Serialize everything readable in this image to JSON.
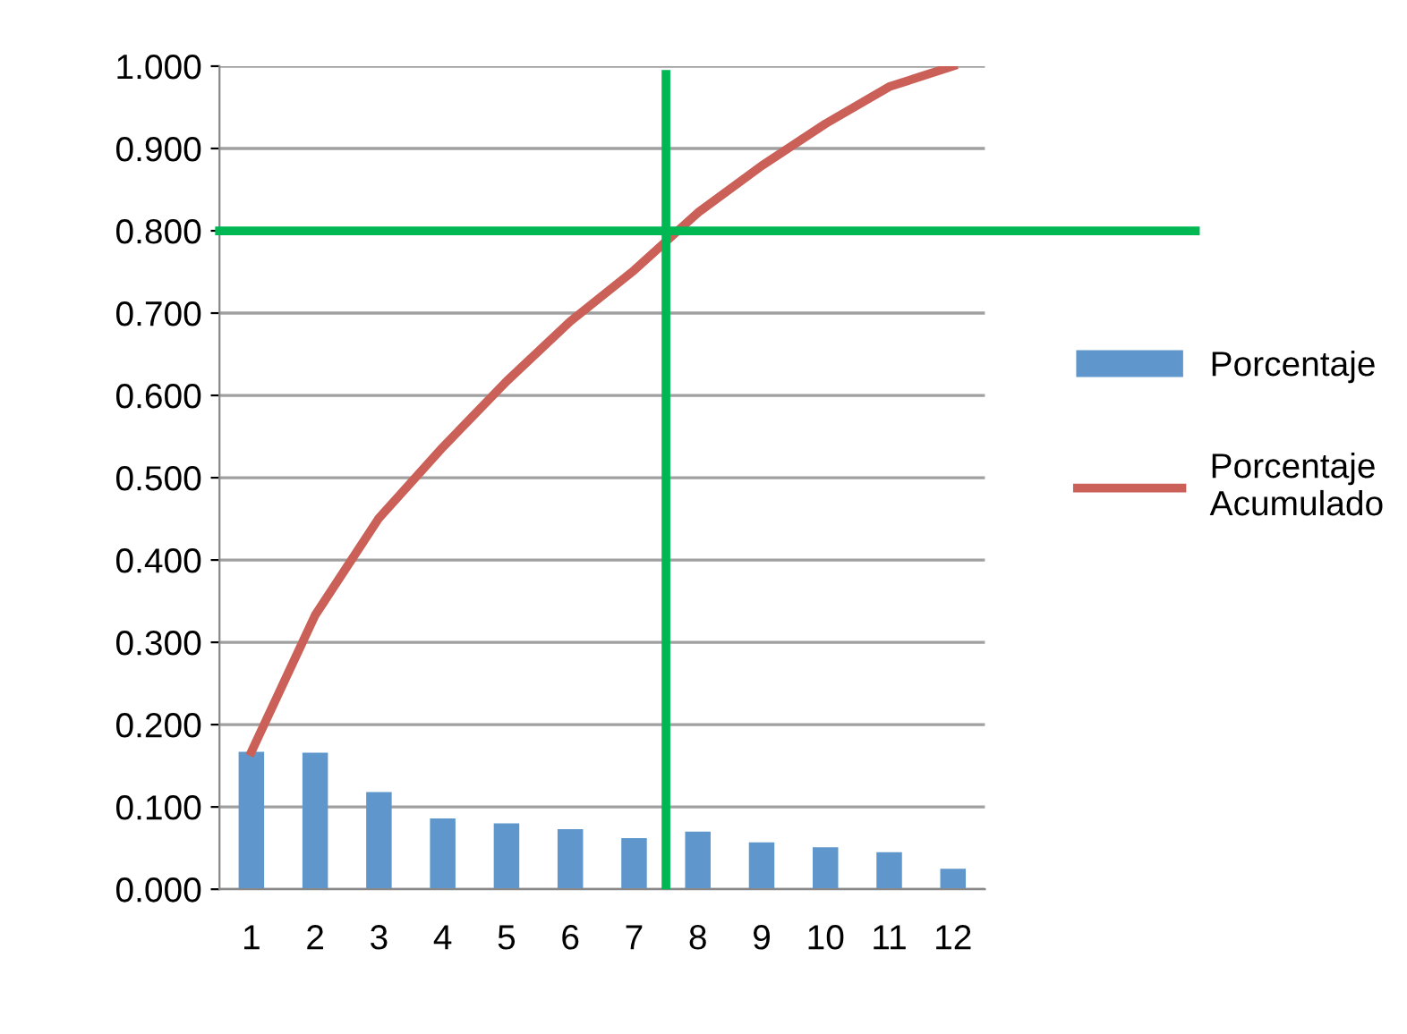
{
  "chart_data": {
    "type": "bar",
    "x": [
      1,
      2,
      3,
      4,
      5,
      6,
      7,
      8,
      9,
      10,
      11,
      12
    ],
    "xlim": [
      0.5,
      12.5
    ],
    "xticks": [
      1,
      2,
      3,
      4,
      5,
      6,
      7,
      8,
      9,
      10,
      11,
      12
    ],
    "ylim": [
      0,
      1
    ],
    "yticks": [
      {
        "value": 0,
        "label": "0.000"
      },
      {
        "value": 0.1,
        "label": "0.100"
      },
      {
        "value": 0.2,
        "label": "0.200"
      },
      {
        "value": 0.3,
        "label": "0.300"
      },
      {
        "value": 0.4,
        "label": "0.400"
      },
      {
        "value": 0.5,
        "label": "0.500"
      },
      {
        "value": 0.6,
        "label": "0.600"
      },
      {
        "value": 0.7,
        "label": "0.700"
      },
      {
        "value": 0.8,
        "label": "0.800"
      },
      {
        "value": 0.9,
        "label": "0.900"
      },
      {
        "value": 1,
        "label": "1.000"
      }
    ],
    "grid": "y",
    "legend": "right",
    "series": [
      {
        "name": "Porcentaje",
        "color": "#5f97cc",
        "values": [
          0.167,
          0.166,
          0.118,
          0.086,
          0.08,
          0.073,
          0.062,
          0.07,
          0.057,
          0.051,
          0.045,
          0.025
        ]
      },
      {
        "name": "Porcentaje\nAcumulado",
        "type": "line",
        "color": "#cb6058",
        "values": [
          0.167,
          0.333,
          0.451,
          0.537,
          0.617,
          0.69,
          0.752,
          0.822,
          0.879,
          0.93,
          0.975,
          1.0
        ]
      }
    ],
    "ref_lines": [
      {
        "axis": "y",
        "value": 0.8,
        "color": "#00b853"
      },
      {
        "axis": "x",
        "value": 7.5,
        "color": "#00b853"
      }
    ]
  }
}
